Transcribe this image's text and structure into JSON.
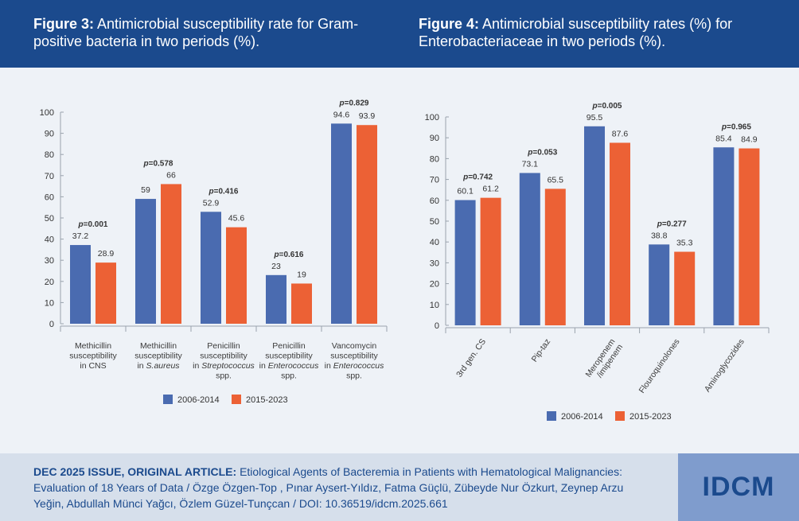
{
  "figure3": {
    "label": "Figure 3:",
    "title": "Antimicrobial susceptibility rate for Gram-positive bacteria in two periods (%).",
    "chart_data": {
      "type": "bar",
      "categories": [
        [
          "Methicillin",
          "susceptibility",
          "in CNS"
        ],
        [
          "Methicillin",
          "susceptibility",
          "in S.aureus"
        ],
        [
          "Penicillin",
          "susceptibility",
          "in Streptococcus",
          "spp."
        ],
        [
          "Penicillin",
          "susceptibility",
          "in Enterococcus",
          "spp."
        ],
        [
          "Vancomycin",
          "susceptibility",
          "in Enterococcus",
          "spp."
        ]
      ],
      "series": [
        {
          "name": "2006-2014",
          "color": "#4a6bb0",
          "values": [
            37.2,
            59,
            52.9,
            23,
            94.6
          ]
        },
        {
          "name": "2015-2023",
          "color": "#ec6135",
          "values": [
            28.9,
            66,
            45.6,
            19,
            93.9
          ]
        }
      ],
      "p_values": [
        "0.001",
        "0.578",
        "0.416",
        "0.616",
        "0.829"
      ],
      "p_prefix": "p",
      "ylim": [
        0,
        100
      ],
      "yticks": [
        0,
        10,
        20,
        30,
        40,
        50,
        60,
        70,
        80,
        90,
        100
      ],
      "grid": false,
      "legend_position": "bottom"
    }
  },
  "figure4": {
    "label": "Figure 4:",
    "title": "Antimicrobial susceptibility rates (%) for Enterobacteriaceae in two periods (%).",
    "chart_data": {
      "type": "bar",
      "categories": [
        "3rd gen. CS",
        "Pip-taz",
        "Meropenem /imipenem",
        "Flouroquinolones",
        "Aminoglycozides"
      ],
      "series": [
        {
          "name": "2006-2014",
          "color": "#4a6bb0",
          "values": [
            60.1,
            73.1,
            95.5,
            38.8,
            85.4
          ]
        },
        {
          "name": "2015-2023",
          "color": "#ec6135",
          "values": [
            61.2,
            65.5,
            87.6,
            35.3,
            84.9
          ]
        }
      ],
      "p_values": [
        "0.742",
        "0.053",
        "0.005",
        "0.277",
        "0.965"
      ],
      "p_prefix": "p",
      "ylim": [
        0,
        100
      ],
      "yticks": [
        0,
        10,
        20,
        30,
        40,
        50,
        60,
        70,
        80,
        90,
        100
      ],
      "grid": false,
      "legend_position": "bottom",
      "category_label_rotation": "diagonal"
    }
  },
  "footer": {
    "issue": "DEC 2025 ISSUE, ORIGINAL ARTICLE:",
    "citation": "Etiological Agents of Bacteremia in Patients with Hematological Malignancies: Evaluation of 18 Years of Data / Özge Özgen-Top , Pınar Aysert-Yıldız, Fatma Güçlü, Zübeyde Nur Özkurt, Zeynep Arzu Yeğin, Abdullah Münci Yağcı, Özlem Güzel-Tunçcan / DOI: 10.36519/idcm.2025.661",
    "logo": "IDCM"
  }
}
